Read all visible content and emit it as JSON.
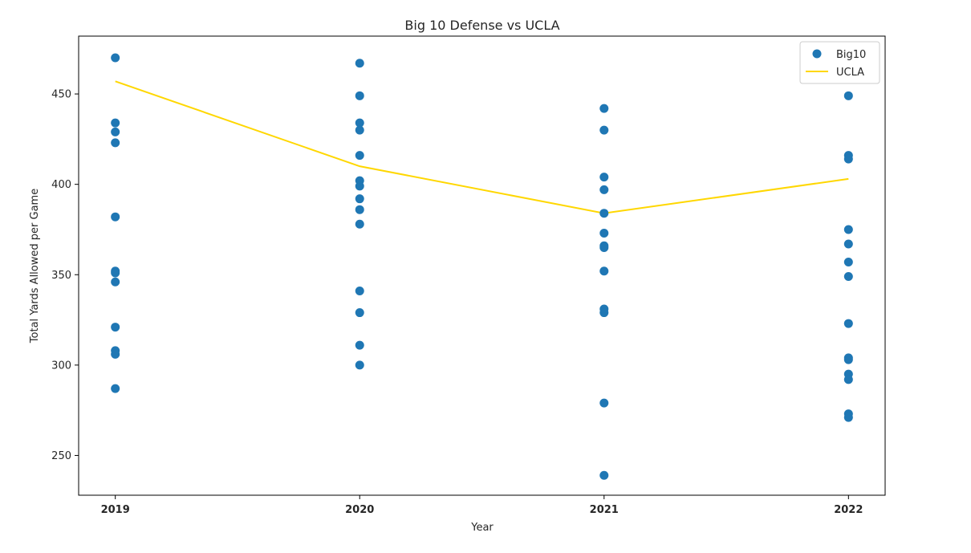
{
  "chart_data": {
    "type": "scatter",
    "title": "Big 10 Defense vs UCLA",
    "xlabel": "Year",
    "ylabel": "Total Yards Allowed per Game",
    "x_ticks": [
      "2019",
      "2020",
      "2021",
      "2022"
    ],
    "y_ticks": [
      250,
      300,
      350,
      400,
      450
    ],
    "xlim": [
      2018.85,
      2022.15
    ],
    "ylim": [
      228,
      482
    ],
    "grid": false,
    "legend": "top-right",
    "series": [
      {
        "name": "Big10",
        "type": "scatter",
        "color": "#1f77b4",
        "points": [
          [
            2019,
            470
          ],
          [
            2019,
            434
          ],
          [
            2019,
            429
          ],
          [
            2019,
            423
          ],
          [
            2019,
            382
          ],
          [
            2019,
            352
          ],
          [
            2019,
            351
          ],
          [
            2019,
            346
          ],
          [
            2019,
            321
          ],
          [
            2019,
            308
          ],
          [
            2019,
            306
          ],
          [
            2019,
            287
          ],
          [
            2020,
            467
          ],
          [
            2020,
            449
          ],
          [
            2020,
            434
          ],
          [
            2020,
            430
          ],
          [
            2020,
            416
          ],
          [
            2020,
            402
          ],
          [
            2020,
            399
          ],
          [
            2020,
            392
          ],
          [
            2020,
            386
          ],
          [
            2020,
            378
          ],
          [
            2020,
            341
          ],
          [
            2020,
            329
          ],
          [
            2020,
            311
          ],
          [
            2020,
            300
          ],
          [
            2021,
            442
          ],
          [
            2021,
            430
          ],
          [
            2021,
            404
          ],
          [
            2021,
            397
          ],
          [
            2021,
            384
          ],
          [
            2021,
            373
          ],
          [
            2021,
            366
          ],
          [
            2021,
            365
          ],
          [
            2021,
            352
          ],
          [
            2021,
            331
          ],
          [
            2021,
            329
          ],
          [
            2021,
            279
          ],
          [
            2021,
            239
          ],
          [
            2022,
            449
          ],
          [
            2022,
            416
          ],
          [
            2022,
            414
          ],
          [
            2022,
            375
          ],
          [
            2022,
            367
          ],
          [
            2022,
            357
          ],
          [
            2022,
            349
          ],
          [
            2022,
            323
          ],
          [
            2022,
            304
          ],
          [
            2022,
            303
          ],
          [
            2022,
            295
          ],
          [
            2022,
            292
          ],
          [
            2022,
            273
          ],
          [
            2022,
            271
          ]
        ]
      },
      {
        "name": "UCLA",
        "type": "line",
        "color": "#ffd700",
        "points": [
          [
            2019,
            457
          ],
          [
            2020,
            410
          ],
          [
            2021,
            384
          ],
          [
            2022,
            403
          ]
        ]
      }
    ]
  }
}
